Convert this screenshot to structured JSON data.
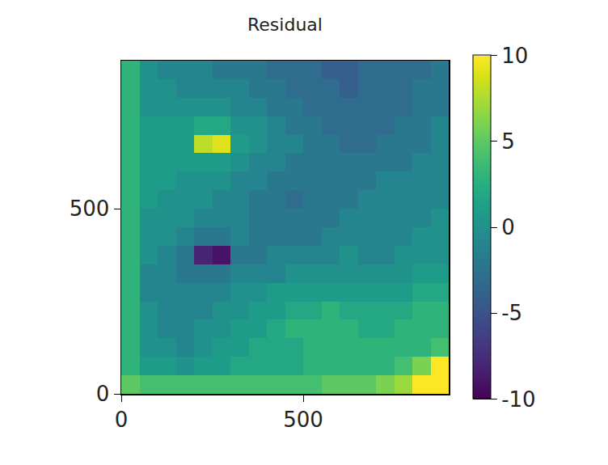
{
  "chart_data": {
    "type": "heatmap",
    "title": "Residual",
    "x": [
      25,
      75,
      125,
      175,
      225,
      275,
      325,
      375,
      425,
      475,
      525,
      575,
      625,
      675,
      725,
      775,
      825,
      875
    ],
    "y": [
      25,
      75,
      125,
      175,
      225,
      275,
      325,
      375,
      425,
      475,
      525,
      575,
      625,
      675,
      725,
      775,
      825,
      875
    ],
    "z": [
      [
        5,
        4,
        4,
        4,
        4,
        4,
        4,
        4,
        4,
        4,
        4,
        5,
        5,
        5,
        6,
        7,
        10,
        10
      ],
      [
        3,
        1,
        1,
        0,
        1,
        1,
        2,
        2,
        2,
        2,
        3,
        3,
        3,
        3,
        3,
        4,
        6,
        10
      ],
      [
        3,
        0,
        0,
        -1,
        0,
        1,
        1,
        2,
        2,
        2,
        3,
        3,
        3,
        3,
        3,
        3,
        3,
        4
      ],
      [
        3,
        0,
        -1,
        -1,
        0,
        0,
        1,
        1,
        2,
        3,
        3,
        3,
        3,
        2,
        2,
        3,
        3,
        3
      ],
      [
        3,
        0,
        -1,
        -1,
        -1,
        0,
        0,
        1,
        1,
        2,
        2,
        3,
        2,
        2,
        2,
        2,
        3,
        3
      ],
      [
        3,
        -1,
        -1,
        -1,
        -1,
        -1,
        0,
        0,
        1,
        1,
        1,
        1,
        1,
        1,
        1,
        1,
        2,
        2
      ],
      [
        3,
        -1,
        -1,
        -2,
        -2,
        -2,
        -1,
        -1,
        -1,
        0,
        0,
        0,
        0,
        0,
        0,
        0,
        1,
        1
      ],
      [
        3,
        0,
        -1,
        -2,
        -8,
        -9,
        -2,
        -2,
        -1,
        -1,
        -1,
        -1,
        0,
        -1,
        -1,
        0,
        0,
        0
      ],
      [
        3,
        0,
        0,
        -1,
        -2,
        -2,
        -1,
        -2,
        -2,
        -2,
        -2,
        -1,
        -1,
        -1,
        -1,
        -1,
        0,
        0
      ],
      [
        3,
        0,
        0,
        0,
        -1,
        -1,
        -1,
        -2,
        -2,
        -2,
        -2,
        -2,
        -1,
        -1,
        -1,
        -1,
        -1,
        0
      ],
      [
        3,
        1,
        0,
        0,
        0,
        -1,
        -1,
        -2,
        -2,
        -3,
        -2,
        -2,
        -2,
        -1,
        -1,
        -1,
        -1,
        -1
      ],
      [
        3,
        1,
        1,
        0,
        0,
        0,
        -1,
        -1,
        -2,
        -2,
        -2,
        -2,
        -2,
        -2,
        -1,
        -1,
        -1,
        -1
      ],
      [
        3,
        1,
        1,
        1,
        1,
        1,
        0,
        -1,
        -1,
        -2,
        -2,
        -2,
        -2,
        -2,
        -2,
        -2,
        -1,
        -1
      ],
      [
        3,
        1,
        1,
        1,
        8,
        9,
        1,
        0,
        -1,
        -1,
        -2,
        -2,
        -3,
        -3,
        -2,
        -2,
        -2,
        -1
      ],
      [
        3,
        1,
        1,
        1,
        2,
        2,
        0,
        0,
        -1,
        -2,
        -2,
        -3,
        -3,
        -3,
        -3,
        -2,
        -2,
        -1
      ],
      [
        3,
        0,
        0,
        0,
        0,
        0,
        -1,
        -1,
        -2,
        -2,
        -3,
        -3,
        -3,
        -3,
        -3,
        -3,
        -2,
        -2
      ],
      [
        3,
        0,
        0,
        -1,
        -1,
        -1,
        -1,
        -2,
        -2,
        -3,
        -3,
        -3,
        -4,
        -3,
        -3,
        -3,
        -2,
        -2
      ],
      [
        3,
        0,
        -1,
        -1,
        -1,
        -2,
        -2,
        -2,
        -3,
        -3,
        -3,
        -4,
        -4,
        -3,
        -3,
        -3,
        -3,
        -2
      ]
    ],
    "xlim": [
      0,
      900
    ],
    "ylim": [
      0,
      900
    ],
    "xticks": [
      0,
      500
    ],
    "yticks": [
      0,
      500
    ],
    "colorbar_lim": [
      -10,
      10
    ],
    "colorbar_ticks": [
      -10,
      -5,
      0,
      5,
      10
    ],
    "grid": false
  }
}
